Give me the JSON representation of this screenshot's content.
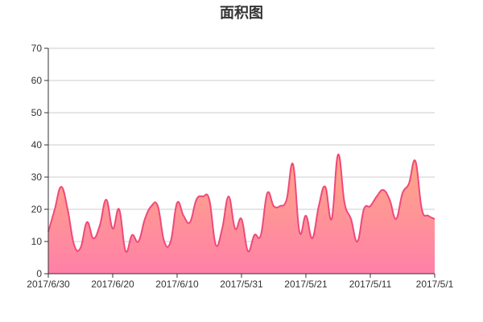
{
  "chart_data": {
    "type": "area",
    "title": "面积图",
    "xlabel": "",
    "ylabel": "",
    "ylim": [
      0,
      70
    ],
    "yticks": [
      "0",
      "10",
      "20",
      "30",
      "40",
      "50",
      "60",
      "70"
    ],
    "xticks": [
      "2017/6/30",
      "2017/6/20",
      "2017/6/10",
      "2017/5/31",
      "2017/5/21",
      "2017/5/11",
      "2017/5/1"
    ],
    "grid": true,
    "x": [
      "2017/6/30",
      "2017/6/29",
      "2017/6/28",
      "2017/6/27",
      "2017/6/26",
      "2017/6/25",
      "2017/6/24",
      "2017/6/23",
      "2017/6/22",
      "2017/6/21",
      "2017/6/20",
      "2017/6/19",
      "2017/6/18",
      "2017/6/17",
      "2017/6/16",
      "2017/6/15",
      "2017/6/14",
      "2017/6/13",
      "2017/6/12",
      "2017/6/11",
      "2017/6/10",
      "2017/6/9",
      "2017/6/8",
      "2017/6/7",
      "2017/6/6",
      "2017/6/5",
      "2017/6/4",
      "2017/6/3",
      "2017/6/2",
      "2017/6/1",
      "2017/5/31",
      "2017/5/30",
      "2017/5/29",
      "2017/5/28",
      "2017/5/27",
      "2017/5/26",
      "2017/5/25",
      "2017/5/24",
      "2017/5/23",
      "2017/5/22",
      "2017/5/21",
      "2017/5/20",
      "2017/5/19",
      "2017/5/18",
      "2017/5/17",
      "2017/5/16",
      "2017/5/15",
      "2017/5/14",
      "2017/5/13",
      "2017/5/12",
      "2017/5/11",
      "2017/5/10",
      "2017/5/9",
      "2017/5/8",
      "2017/5/7",
      "2017/5/6",
      "2017/5/5",
      "2017/5/4",
      "2017/5/3",
      "2017/5/2",
      "2017/5/1"
    ],
    "values": [
      13,
      20,
      27,
      20,
      9,
      8,
      16,
      11,
      15,
      23,
      14,
      20,
      7,
      12,
      10,
      17,
      21,
      21,
      10,
      10,
      22,
      18,
      16,
      23,
      24,
      23,
      9,
      14,
      24,
      14,
      17,
      7,
      12,
      12,
      25,
      21,
      21,
      23,
      34,
      13,
      18,
      11,
      21,
      27,
      17,
      37,
      22,
      17,
      10,
      20,
      21,
      24,
      26,
      23,
      17,
      25,
      28,
      35,
      20,
      18,
      17
    ],
    "colors": {
      "line": "#f0487a",
      "fill_top": "#ffa985",
      "fill_bottom": "#ff80a8"
    }
  }
}
